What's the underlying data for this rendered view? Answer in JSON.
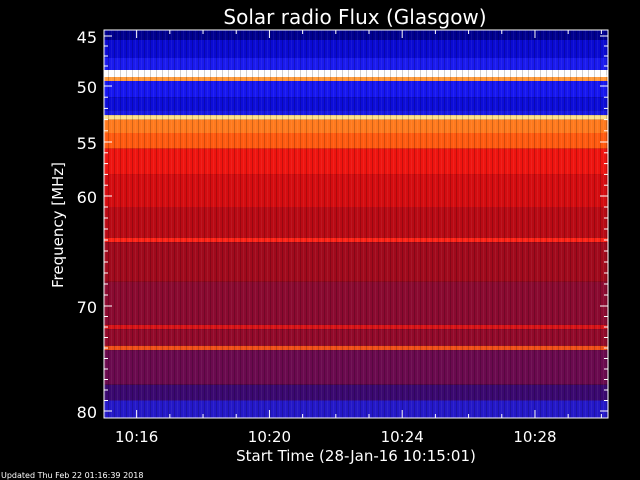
{
  "chart_data": {
    "type": "heatmap",
    "title": "Solar radio Flux (Glasgow)",
    "ylabel": "Frequency [MHz]",
    "xlabel": "Start Time (28-Jan-16 10:15:01)",
    "footer": "Updated Thu Feb 22 01:16:39 2018",
    "y_ticks": [
      "45",
      "50",
      "55",
      "60",
      "70",
      "80"
    ],
    "y_tick_values": [
      45,
      50,
      55,
      60,
      70,
      80
    ],
    "x_ticks": [
      "10:16",
      "10:20",
      "10:24",
      "10:28"
    ],
    "x_tick_values_minutes": [
      16,
      20,
      24,
      28
    ],
    "x_range_minutes": [
      15.0167,
      30.2
    ],
    "y_range_mhz": [
      45,
      80
    ],
    "bands": [
      {
        "from": 45.0,
        "to": 45.4,
        "color": "#00008f"
      },
      {
        "from": 45.4,
        "to": 47.2,
        "color": "#0a0ad2"
      },
      {
        "from": 47.2,
        "to": 48.4,
        "color": "#1a1aee"
      },
      {
        "from": 48.4,
        "to": 49.1,
        "color": "#ffffff"
      },
      {
        "from": 49.1,
        "to": 49.5,
        "color": "#ff9a3a"
      },
      {
        "from": 49.5,
        "to": 51.0,
        "color": "#1616f0"
      },
      {
        "from": 51.0,
        "to": 52.2,
        "color": "#0c0cd8"
      },
      {
        "from": 52.2,
        "to": 52.6,
        "color": "#1818e6"
      },
      {
        "from": 52.6,
        "to": 53.0,
        "color": "#ffe08a"
      },
      {
        "from": 53.0,
        "to": 54.2,
        "color": "#ff7a1e"
      },
      {
        "from": 54.2,
        "to": 55.6,
        "color": "#ff5a10"
      },
      {
        "from": 55.6,
        "to": 58.0,
        "color": "#ee1410"
      },
      {
        "from": 58.0,
        "to": 61.0,
        "color": "#d40c10"
      },
      {
        "from": 61.0,
        "to": 63.8,
        "color": "#b80a14"
      },
      {
        "from": 63.8,
        "to": 64.2,
        "color": "#ff2418"
      },
      {
        "from": 64.2,
        "to": 67.8,
        "color": "#a00a1c"
      },
      {
        "from": 67.8,
        "to": 71.8,
        "color": "#8a0a30"
      },
      {
        "from": 71.8,
        "to": 72.2,
        "color": "#d81418"
      },
      {
        "from": 72.2,
        "to": 73.8,
        "color": "#920a2a"
      },
      {
        "from": 73.8,
        "to": 74.2,
        "color": "#f05018"
      },
      {
        "from": 74.2,
        "to": 77.5,
        "color": "#6a0a4e"
      },
      {
        "from": 77.5,
        "to": 79.0,
        "color": "#3a0870"
      },
      {
        "from": 79.0,
        "to": 80.0,
        "color": "#2418c8"
      }
    ],
    "colors": {
      "background": "#000000",
      "axis": "#ffffff"
    }
  }
}
